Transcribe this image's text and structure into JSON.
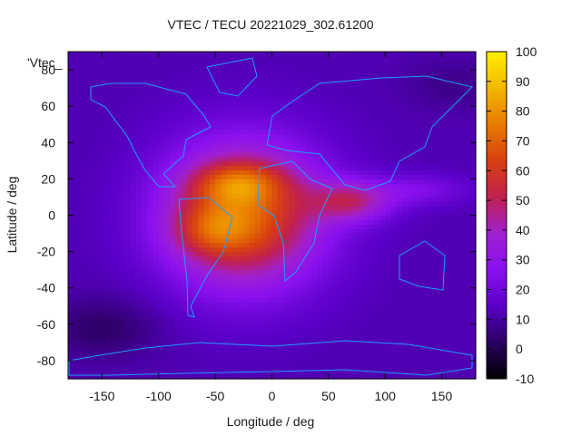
{
  "chart_data": {
    "type": "heatmap",
    "title": "VTEC / TECU 20221029_302.61200",
    "xlabel": "Longitude / deg",
    "ylabel": "Latitude / deg",
    "series_label": "'Vtec_",
    "xlim": [
      -180,
      180
    ],
    "ylim": [
      -90,
      90
    ],
    "x_ticks": [
      -150,
      -100,
      -50,
      0,
      50,
      100,
      150
    ],
    "y_ticks": [
      -80,
      -60,
      -40,
      -20,
      0,
      20,
      40,
      60,
      80
    ],
    "colorbar": {
      "min": -10,
      "max": 100,
      "ticks": [
        -10,
        0,
        10,
        20,
        30,
        40,
        50,
        60,
        70,
        80,
        90,
        100
      ],
      "palette": [
        "#000000",
        "#2a0060",
        "#5a00c8",
        "#8a10f0",
        "#a020d0",
        "#c02050",
        "#d84010",
        "#e87a00",
        "#f4b800",
        "#fff000"
      ]
    },
    "grid": {
      "lon_step": 5,
      "lat_step": 2.5,
      "background_tec": 12,
      "features": [
        {
          "name": "main_anomaly",
          "lon": -25,
          "lat": 0,
          "lon_sigma": 48,
          "lat_sigma": 27,
          "peak_tec": 58
        },
        {
          "name": "northern_crest",
          "lon": -30,
          "lat": 18,
          "lon_sigma": 28,
          "lat_sigma": 8,
          "peak_tec": 24
        },
        {
          "name": "southern_crest",
          "lon": -55,
          "lat": -8,
          "lon_sigma": 24,
          "lat_sigma": 10,
          "peak_tec": 18
        },
        {
          "name": "eastern_tail",
          "lon": 70,
          "lat": 8,
          "lon_sigma": 25,
          "lat_sigma": 8,
          "peak_tec": 30
        },
        {
          "name": "far_east_tail",
          "lon": 130,
          "lat": 14,
          "lon_sigma": 30,
          "lat_sigma": 6,
          "peak_tec": 12
        },
        {
          "name": "south_pole_dip",
          "lon": -150,
          "lat": -62,
          "lon_sigma": 35,
          "lat_sigma": 12,
          "peak_tec": -9
        },
        {
          "name": "north_dip",
          "lon": 160,
          "lat": 72,
          "lon_sigma": 30,
          "lat_sigma": 10,
          "peak_tec": -5
        }
      ]
    }
  }
}
